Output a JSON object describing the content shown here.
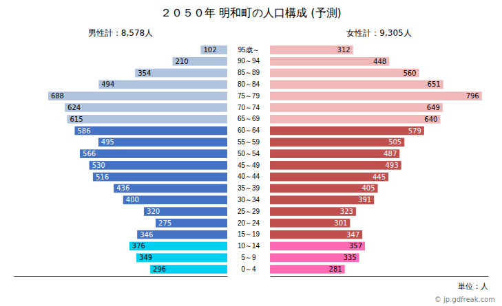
{
  "chart_data": {
    "type": "bar",
    "orientation": "horizontal",
    "title": "２０５０年 明和町の人口構成 (予測)",
    "categories": [
      "0～4",
      "5～9",
      "10～14",
      "15～19",
      "20～24",
      "25～29",
      "30～34",
      "35～39",
      "40～44",
      "45～49",
      "50～54",
      "55～59",
      "60～64",
      "65～69",
      "70～74",
      "75～79",
      "80～84",
      "85～89",
      "90～94",
      "95歳～"
    ],
    "series": [
      {
        "name": "男性計：8,578人",
        "values": [
          296,
          349,
          376,
          346,
          275,
          320,
          400,
          436,
          516,
          530,
          566,
          495,
          586,
          615,
          624,
          688,
          494,
          354,
          210,
          102
        ],
        "colors": [
          "#00d0f0",
          "#00d0f0",
          "#00d0f0",
          "#4472c4",
          "#4472c4",
          "#4472c4",
          "#4472c4",
          "#4472c4",
          "#4472c4",
          "#4472c4",
          "#4472c4",
          "#4472c4",
          "#4472c4",
          "#b0c4de",
          "#b0c4de",
          "#b0c4de",
          "#b0c4de",
          "#b0c4de",
          "#b0c4de",
          "#b0c4de"
        ]
      },
      {
        "name": "女性計：9,305人",
        "values": [
          281,
          335,
          357,
          347,
          301,
          323,
          391,
          405,
          445,
          493,
          487,
          505,
          579,
          640,
          649,
          796,
          651,
          560,
          448,
          312
        ],
        "colors": [
          "#ff69b4",
          "#ff69b4",
          "#ff69b4",
          "#c0504d",
          "#c0504d",
          "#c0504d",
          "#c0504d",
          "#c0504d",
          "#c0504d",
          "#c0504d",
          "#c0504d",
          "#c0504d",
          "#c0504d",
          "#f0b8b8",
          "#f0b8b8",
          "#f0b8b8",
          "#f0b8b8",
          "#f0b8b8",
          "#f0b8b8",
          "#f0b8b8"
        ]
      }
    ],
    "xlim": [
      0,
      820
    ],
    "data_labels": true,
    "tick_labels": "y",
    "annotations": [
      "単位：人",
      "© jp.gdfreak.com"
    ]
  }
}
